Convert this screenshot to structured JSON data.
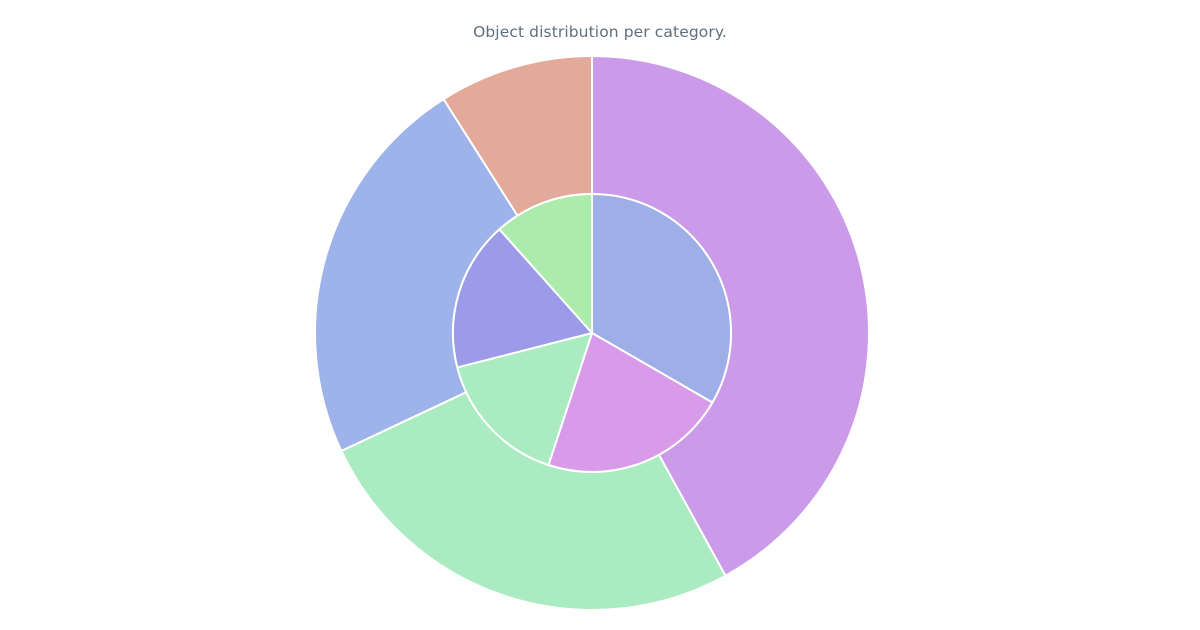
{
  "chart_data": {
    "type": "pie",
    "title": "Object distribution per category.",
    "rings": [
      {
        "name": "",
        "values": [
          42,
          26,
          23,
          9
        ],
        "colors": [
          "#cb9bea",
          "#abebc2",
          "#9eb3ea",
          "#e3aa9b"
        ]
      },
      {
        "name": "",
        "values": [
          23,
          15,
          11,
          12,
          8
        ],
        "colors": [
          "#9eaee7",
          "#d79be9",
          "#abebc2",
          "#9b9be7",
          "#abebac"
        ]
      }
    ]
  }
}
